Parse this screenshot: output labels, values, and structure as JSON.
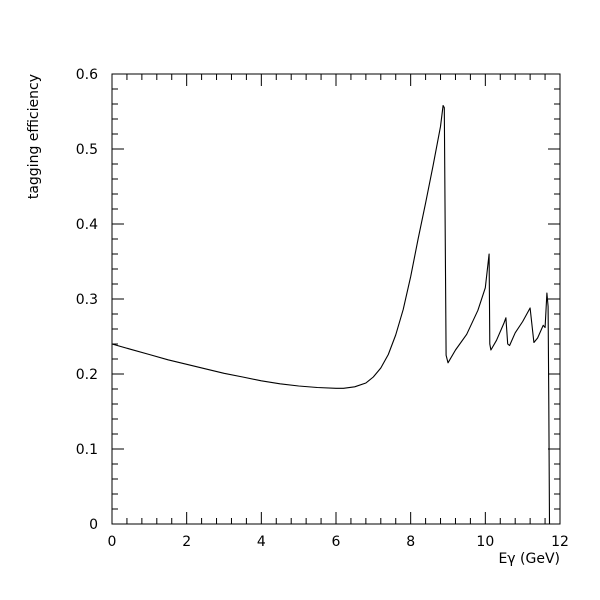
{
  "chart_data": {
    "type": "line",
    "title": "",
    "xlabel": "Eγ (GeV)",
    "ylabel": "tagging efficiency",
    "xlim": [
      0,
      12
    ],
    "ylim": [
      0,
      0.6
    ],
    "x_ticks": [
      0,
      2,
      4,
      6,
      8,
      10,
      12
    ],
    "x_tick_labels": [
      "0",
      "2",
      "4",
      "6",
      "8",
      "10",
      "12"
    ],
    "y_ticks": [
      0,
      0.1,
      0.2,
      0.3,
      0.4,
      0.5,
      0.6
    ],
    "y_tick_labels": [
      "0",
      "0.1",
      "0.2",
      "0.3",
      "0.4",
      "0.5",
      "0.6"
    ],
    "grid": false,
    "series": [
      {
        "x": [
          0.0,
          0.5,
          1.0,
          1.5,
          2.0,
          2.5,
          3.0,
          3.5,
          4.0,
          4.5,
          5.0,
          5.5,
          6.0,
          6.2,
          6.5,
          6.8,
          7.0,
          7.2,
          7.4,
          7.6,
          7.8,
          8.0,
          8.2,
          8.4,
          8.6,
          8.8,
          8.87,
          8.9,
          8.95,
          9.0,
          9.2,
          9.5,
          9.8,
          10.0,
          10.1,
          10.12,
          10.15,
          10.3,
          10.5,
          10.55,
          10.6,
          10.65,
          10.8,
          11.0,
          11.2,
          11.3,
          11.4,
          11.55,
          11.6,
          11.65,
          11.68,
          11.7,
          11.72
        ],
        "y": [
          0.24,
          0.233,
          0.226,
          0.219,
          0.213,
          0.207,
          0.201,
          0.196,
          0.191,
          0.187,
          0.184,
          0.182,
          0.181,
          0.181,
          0.183,
          0.188,
          0.196,
          0.208,
          0.226,
          0.252,
          0.286,
          0.33,
          0.38,
          0.428,
          0.478,
          0.53,
          0.558,
          0.555,
          0.225,
          0.215,
          0.232,
          0.253,
          0.285,
          0.315,
          0.36,
          0.24,
          0.232,
          0.245,
          0.268,
          0.275,
          0.24,
          0.238,
          0.255,
          0.27,
          0.288,
          0.242,
          0.248,
          0.265,
          0.262,
          0.308,
          0.29,
          0.16,
          0.0
        ]
      }
    ]
  }
}
